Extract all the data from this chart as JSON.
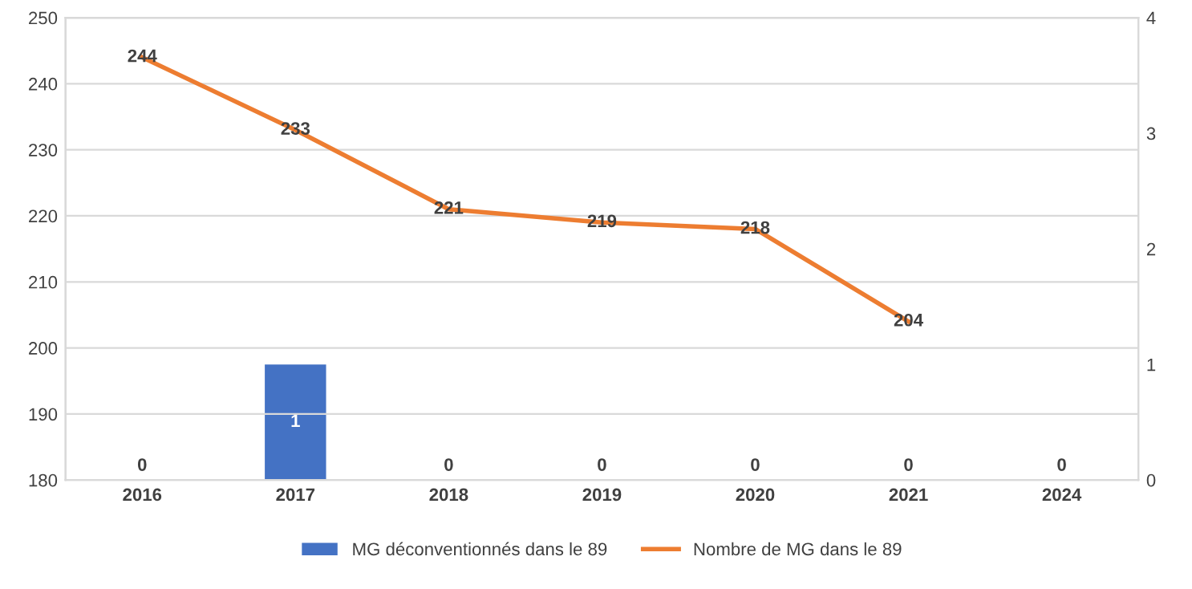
{
  "chart_data": {
    "type": "bar",
    "categories": [
      "2016",
      "2017",
      "2018",
      "2019",
      "2020",
      "2021",
      "2024"
    ],
    "series": [
      {
        "name": "MG déconventionnés dans le 89",
        "axis": "y2",
        "color": "#4472c4",
        "values": [
          0,
          1,
          0,
          0,
          0,
          0,
          0
        ]
      },
      {
        "name": "Nombre de MG dans le 89",
        "type": "line",
        "color": "#ed7d31",
        "values": [
          244,
          233,
          221,
          219,
          218,
          204,
          null
        ]
      }
    ],
    "ylim": [
      180,
      250
    ],
    "yticks": [
      180,
      190,
      200,
      210,
      220,
      230,
      240,
      250
    ],
    "y2lim": [
      0,
      4
    ],
    "y2ticks": [
      0,
      1,
      2,
      3,
      4
    ],
    "grid": "y",
    "legend": "bottom",
    "data_labels": true,
    "marker": "none",
    "line_style": "solid"
  }
}
